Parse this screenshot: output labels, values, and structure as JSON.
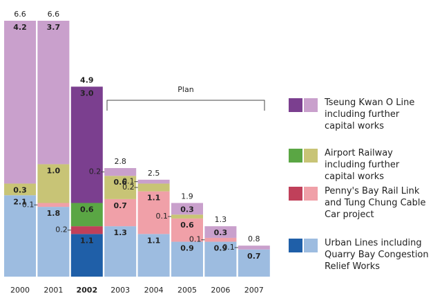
{
  "chart_data": {
    "type": "stacked_bar",
    "categories": [
      "2000",
      "2001",
      "2002",
      "2003",
      "2004",
      "2005",
      "2006",
      "2007"
    ],
    "highlight_category": "2002",
    "series": [
      {
        "name": "Urban Lines including Quarry Bay Congestion Relief Works",
        "color": "#9dbce0",
        "highlight_color": "#1f5fa8",
        "values": [
          2.1,
          1.8,
          1.1,
          1.3,
          1.1,
          0.9,
          0.9,
          0.7
        ],
        "value_labels": [
          "2.1",
          "1.8",
          "1.1",
          "1.3",
          "1.1",
          "0.9",
          "0.9",
          "0.7"
        ]
      },
      {
        "name": "Penny's Bay Rail Link and Tung Chung Cable Car project",
        "color": "#f0a0a8",
        "highlight_color": "#c0405a",
        "values": [
          null,
          0.1,
          0.2,
          0.7,
          1.1,
          0.6,
          0.1,
          null
        ],
        "value_labels": [
          null,
          "0.1",
          "0.2",
          "0.7",
          "1.1",
          "0.6",
          "0.1",
          null
        ]
      },
      {
        "name": "Airport Railway including further capital works",
        "color": "#c8c476",
        "highlight_color": "#5aa644",
        "values": [
          0.3,
          1.0,
          0.6,
          0.6,
          0.2,
          0.1,
          null,
          null
        ],
        "value_labels": [
          "0.3",
          "1.0",
          "0.6",
          "0.6",
          "0.2",
          "0.1",
          null,
          null
        ]
      },
      {
        "name": "Tseung Kwan O Line including further capital works",
        "color": "#c9a0cc",
        "highlight_color": "#7b3f8f",
        "values": [
          4.2,
          3.7,
          3.0,
          0.2,
          0.1,
          0.3,
          0.3,
          0.1
        ],
        "value_labels": [
          "4.2",
          "3.7",
          "3.0",
          "0.2",
          "0.1",
          "0.3",
          "0.3",
          "0.1"
        ]
      }
    ],
    "totals": [
      6.6,
      6.6,
      4.9,
      2.8,
      2.5,
      1.9,
      1.3,
      0.8
    ],
    "annotation": "Plan"
  }
}
